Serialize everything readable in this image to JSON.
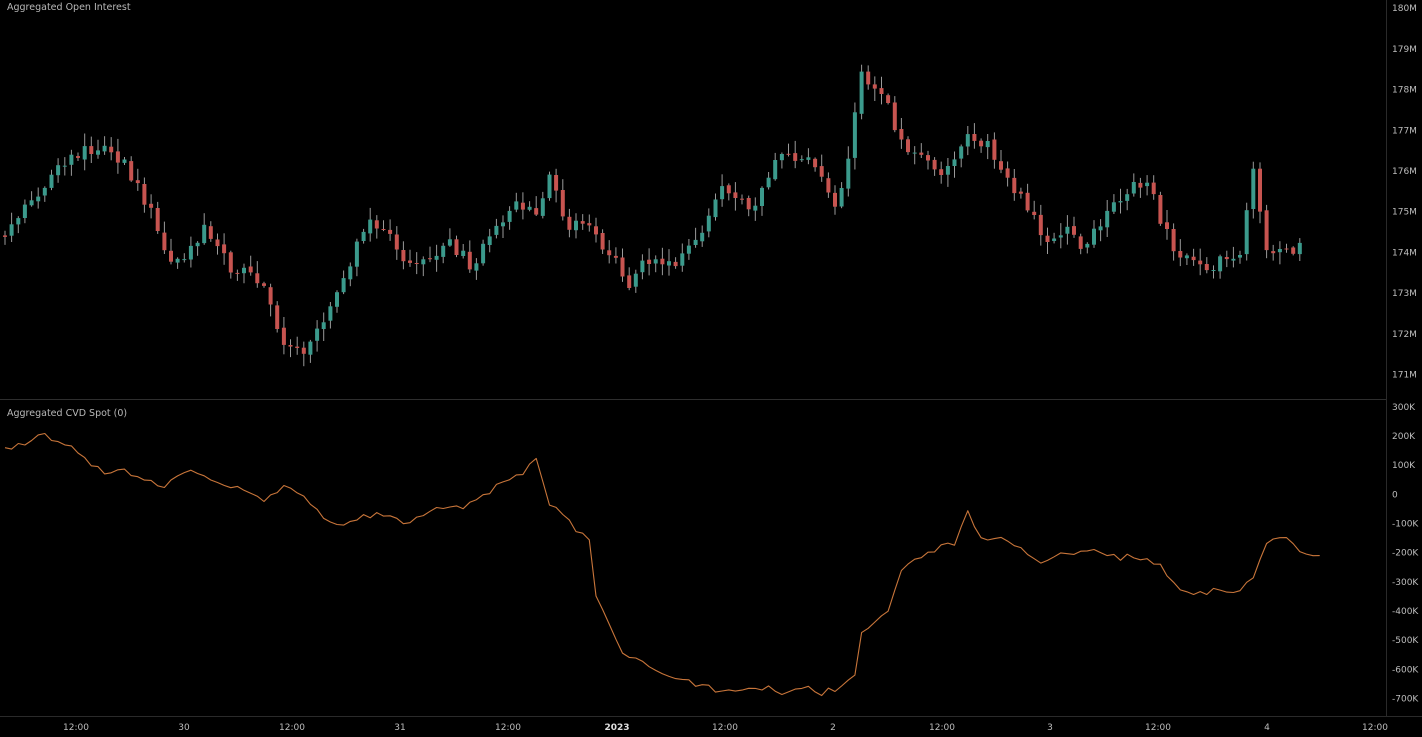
{
  "colors": {
    "background": "#000000",
    "up": "#3b9a8c",
    "down": "#c75450",
    "wick": "#9a9a9a",
    "cvd_line": "#c8753a",
    "separator": "#2e2e2e",
    "axis_text": "#bdbdbd"
  },
  "chart_data": [
    {
      "type": "candlestick",
      "title": "Aggregated Open Interest",
      "y_unit": "M",
      "ylim": [
        170.4,
        180.2
      ],
      "y_ticks": [
        "171M",
        "172M",
        "173M",
        "174M",
        "175M",
        "176M",
        "177M",
        "178M",
        "179M",
        "180M"
      ],
      "x_ticks": [
        "12:00",
        "30",
        "12:00",
        "31",
        "12:00",
        "2023",
        "12:00",
        "2",
        "12:00",
        "3",
        "12:00",
        "4",
        "12:00"
      ],
      "x_tick_bold": [
        false,
        false,
        false,
        false,
        false,
        true,
        false,
        false,
        false,
        false,
        false,
        false,
        false
      ],
      "anchors_close": [
        [
          0,
          174.5
        ],
        [
          3,
          175.2
        ],
        [
          8,
          176.0
        ],
        [
          12,
          176.6
        ],
        [
          15,
          176.5
        ],
        [
          18,
          176.2
        ],
        [
          22,
          175.0
        ],
        [
          24,
          174.0
        ],
        [
          27,
          173.8
        ],
        [
          30,
          174.6
        ],
        [
          34,
          173.6
        ],
        [
          37,
          173.5
        ],
        [
          40,
          172.8
        ],
        [
          42,
          171.7
        ],
        [
          45,
          171.4
        ],
        [
          48,
          172.3
        ],
        [
          51,
          173.5
        ],
        [
          55,
          174.8
        ],
        [
          58,
          174.6
        ],
        [
          60,
          173.8
        ],
        [
          64,
          173.9
        ],
        [
          67,
          174.2
        ],
        [
          70,
          173.7
        ],
        [
          73,
          174.3
        ],
        [
          77,
          175.3
        ],
        [
          80,
          175.0
        ],
        [
          82,
          176.0
        ],
        [
          84,
          174.8
        ],
        [
          88,
          174.5
        ],
        [
          91,
          174.1
        ],
        [
          94,
          173.3
        ],
        [
          98,
          174.0
        ],
        [
          101,
          173.6
        ],
        [
          105,
          174.5
        ],
        [
          108,
          175.6
        ],
        [
          112,
          175.0
        ],
        [
          116,
          176.2
        ],
        [
          120,
          176.4
        ],
        [
          123,
          175.8
        ],
        [
          125,
          175.1
        ],
        [
          127,
          176.3
        ],
        [
          129,
          178.3
        ],
        [
          132,
          178.0
        ],
        [
          135,
          176.6
        ],
        [
          138,
          176.5
        ],
        [
          141,
          175.8
        ],
        [
          145,
          176.8
        ],
        [
          148,
          176.6
        ],
        [
          151,
          175.8
        ],
        [
          154,
          175.0
        ],
        [
          157,
          174.4
        ],
        [
          160,
          174.5
        ],
        [
          163,
          174.1
        ],
        [
          166,
          175.1
        ],
        [
          169,
          175.5
        ],
        [
          172,
          175.7
        ],
        [
          175,
          174.4
        ],
        [
          178,
          173.8
        ],
        [
          181,
          173.6
        ],
        [
          184,
          173.9
        ],
        [
          186,
          174.1
        ],
        [
          188,
          176.0
        ],
        [
          190,
          174.2
        ],
        [
          193,
          174.0
        ],
        [
          195,
          174.1
        ]
      ]
    },
    {
      "type": "line",
      "title": "Aggregated CVD Spot (0)",
      "y_unit": "K",
      "ylim": [
        -760,
        310
      ],
      "y_ticks": [
        "300K",
        "200K",
        "100K",
        "0",
        "-100K",
        "-200K",
        "-300K",
        "-400K",
        "-500K",
        "-600K",
        "-700K"
      ],
      "anchors": [
        [
          0,
          160
        ],
        [
          3,
          175
        ],
        [
          6,
          205
        ],
        [
          9,
          175
        ],
        [
          12,
          120
        ],
        [
          15,
          70
        ],
        [
          18,
          80
        ],
        [
          21,
          45
        ],
        [
          24,
          30
        ],
        [
          27,
          80
        ],
        [
          30,
          70
        ],
        [
          33,
          35
        ],
        [
          36,
          15
        ],
        [
          39,
          -20
        ],
        [
          42,
          20
        ],
        [
          45,
          0
        ],
        [
          48,
          -90
        ],
        [
          51,
          -100
        ],
        [
          54,
          -80
        ],
        [
          57,
          -70
        ],
        [
          60,
          -100
        ],
        [
          63,
          -65
        ],
        [
          66,
          -40
        ],
        [
          69,
          -40
        ],
        [
          72,
          -10
        ],
        [
          75,
          40
        ],
        [
          78,
          70
        ],
        [
          80,
          120
        ],
        [
          82,
          -40
        ],
        [
          84,
          -60
        ],
        [
          86,
          -120
        ],
        [
          88,
          -160
        ],
        [
          89,
          -350
        ],
        [
          91,
          -450
        ],
        [
          93,
          -545
        ],
        [
          96,
          -570
        ],
        [
          99,
          -620
        ],
        [
          102,
          -635
        ],
        [
          105,
          -655
        ],
        [
          108,
          -680
        ],
        [
          111,
          -670
        ],
        [
          114,
          -660
        ],
        [
          117,
          -680
        ],
        [
          120,
          -660
        ],
        [
          123,
          -680
        ],
        [
          126,
          -660
        ],
        [
          128,
          -610
        ],
        [
          129,
          -470
        ],
        [
          131,
          -440
        ],
        [
          133,
          -390
        ],
        [
          135,
          -270
        ],
        [
          137,
          -220
        ],
        [
          140,
          -190
        ],
        [
          143,
          -170
        ],
        [
          145,
          -60
        ],
        [
          147,
          -150
        ],
        [
          150,
          -140
        ],
        [
          153,
          -190
        ],
        [
          156,
          -230
        ],
        [
          159,
          -210
        ],
        [
          162,
          -200
        ],
        [
          165,
          -195
        ],
        [
          168,
          -215
        ],
        [
          171,
          -215
        ],
        [
          174,
          -240
        ],
        [
          176,
          -310
        ],
        [
          179,
          -340
        ],
        [
          182,
          -330
        ],
        [
          185,
          -340
        ],
        [
          188,
          -290
        ],
        [
          190,
          -170
        ],
        [
          192,
          -140
        ],
        [
          194,
          -170
        ],
        [
          196,
          -205
        ],
        [
          198,
          -210
        ]
      ]
    }
  ]
}
